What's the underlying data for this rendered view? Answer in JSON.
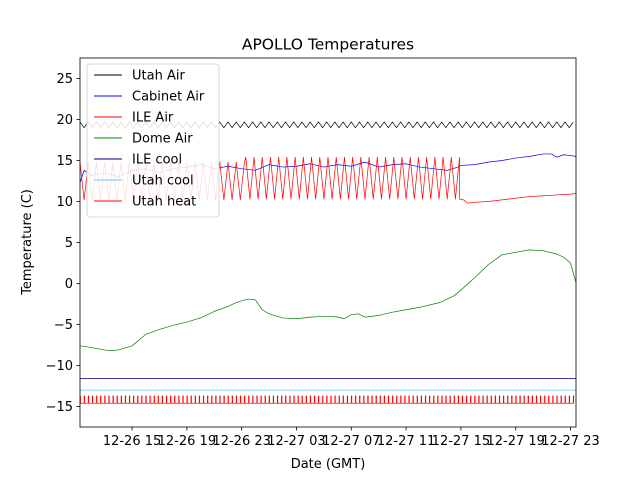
{
  "chart_data": {
    "type": "line",
    "title": "APOLLO Temperatures",
    "xlabel": "Date (GMT)",
    "ylabel": "Temperature (C)",
    "xlim": [
      11.2,
      47.4
    ],
    "ylim": [
      -17.5,
      27.5
    ],
    "xticks": [
      {
        "value": 15,
        "label": "12-26 15"
      },
      {
        "value": 19,
        "label": "12-26 19"
      },
      {
        "value": 23,
        "label": "12-26 23"
      },
      {
        "value": 27,
        "label": "12-27 03"
      },
      {
        "value": 31,
        "label": "12-27 07"
      },
      {
        "value": 35,
        "label": "12-27 11"
      },
      {
        "value": 39,
        "label": "12-27 15"
      },
      {
        "value": 43,
        "label": "12-27 19"
      },
      {
        "value": 47,
        "label": "12-27 23"
      }
    ],
    "yticks": [
      {
        "value": -15,
        "label": "−15"
      },
      {
        "value": -10,
        "label": "−10"
      },
      {
        "value": -5,
        "label": "−5"
      },
      {
        "value": 0,
        "label": "0"
      },
      {
        "value": 5,
        "label": "5"
      },
      {
        "value": 10,
        "label": "10"
      },
      {
        "value": 15,
        "label": "15"
      },
      {
        "value": 20,
        "label": "20"
      },
      {
        "value": 25,
        "label": "25"
      }
    ],
    "grid": false,
    "legend_position": "top-left",
    "series": [
      {
        "name": "Utah Air",
        "color": "#000000",
        "kind": "oscillation",
        "segments": [
          {
            "x0": 11.2,
            "x1": 47.4,
            "low": 19.0,
            "high": 19.7,
            "period": 0.6
          }
        ]
      },
      {
        "name": "Cabinet Air",
        "color": "#0000ff",
        "kind": "line",
        "x": [
          11.2,
          11.5,
          12.0,
          13.0,
          14.0,
          15.0,
          16.0,
          17.0,
          18.0,
          19.0,
          20.0,
          21.0,
          22.0,
          23.0,
          24.0,
          25.0,
          26.0,
          27.0,
          28.0,
          29.0,
          30.0,
          31.0,
          32.0,
          33.0,
          34.0,
          35.0,
          36.0,
          37.0,
          38.0,
          38.8,
          39.0,
          40.0,
          41.0,
          42.0,
          43.0,
          44.0,
          45.0,
          45.6,
          46.0,
          46.5,
          47.0,
          47.4
        ],
        "y": [
          12.3,
          13.8,
          13.2,
          13.5,
          13.0,
          13.8,
          14.0,
          13.5,
          14.0,
          14.2,
          14.5,
          14.0,
          14.3,
          14.0,
          13.8,
          14.5,
          14.2,
          14.3,
          14.6,
          14.2,
          14.5,
          14.3,
          14.8,
          14.2,
          14.5,
          14.6,
          14.2,
          14.0,
          13.8,
          14.2,
          14.4,
          14.5,
          14.8,
          15.0,
          15.3,
          15.5,
          15.8,
          15.8,
          15.4,
          15.7,
          15.6,
          15.5
        ]
      },
      {
        "name": "ILE Air",
        "color": "#ff0000",
        "kind": "oscillation",
        "segments": [
          {
            "x0": 11.2,
            "x1": 23.3,
            "low": 10.2,
            "high": 14.8,
            "period": 0.6
          },
          {
            "x0": 23.3,
            "x1": 38.9,
            "low": 10.3,
            "high": 15.4,
            "period": 0.6
          }
        ],
        "x": [
          38.9,
          39.2,
          39.5,
          40.0,
          41.0,
          42.0,
          43.0,
          44.0,
          45.0,
          46.0,
          47.0,
          47.4
        ],
        "y": [
          10.3,
          10.2,
          9.8,
          9.9,
          10.0,
          10.2,
          10.4,
          10.6,
          10.7,
          10.8,
          10.9,
          11.0
        ]
      },
      {
        "name": "Dome Air",
        "color": "#008000",
        "kind": "line",
        "x": [
          11.2,
          12.0,
          13.0,
          13.5,
          14.0,
          15.0,
          16.0,
          17.0,
          18.0,
          19.0,
          20.0,
          21.0,
          22.0,
          22.5,
          23.0,
          23.5,
          24.0,
          24.5,
          25.0,
          26.0,
          27.0,
          28.0,
          29.0,
          29.5,
          30.0,
          30.5,
          31.0,
          31.5,
          32.0,
          33.0,
          34.0,
          35.0,
          36.0,
          37.0,
          37.5,
          38.0,
          38.5,
          39.0,
          40.0,
          41.0,
          42.0,
          43.0,
          44.0,
          45.0,
          46.0,
          46.5,
          47.0,
          47.4
        ],
        "y": [
          -7.6,
          -7.8,
          -8.1,
          -8.2,
          -8.1,
          -7.6,
          -6.2,
          -5.6,
          -5.1,
          -4.7,
          -4.2,
          -3.4,
          -2.8,
          -2.4,
          -2.1,
          -1.9,
          -2.0,
          -3.2,
          -3.7,
          -4.2,
          -4.3,
          -4.1,
          -4.0,
          -4.0,
          -4.1,
          -4.3,
          -3.8,
          -3.7,
          -4.1,
          -3.9,
          -3.5,
          -3.2,
          -2.9,
          -2.5,
          -2.3,
          -1.9,
          -1.5,
          -0.8,
          0.7,
          2.3,
          3.5,
          3.8,
          4.1,
          4.0,
          3.6,
          3.2,
          2.5,
          0.1
        ]
      },
      {
        "name": "ILE cool",
        "color": "#00008b",
        "kind": "step",
        "x": [
          11.2,
          47.4
        ],
        "y": [
          -11.6,
          -11.6
        ]
      },
      {
        "name": "Utah cool",
        "color": "#64c8ff",
        "kind": "step",
        "x": [
          11.2,
          47.4
        ],
        "y": [
          -13.0,
          -13.0
        ]
      },
      {
        "name": "Utah heat",
        "color": "#ff0000",
        "kind": "pulses",
        "segments": [
          {
            "x0": 11.2,
            "x1": 47.4,
            "low": -14.6,
            "high": -13.7,
            "period": 0.3
          }
        ]
      }
    ]
  }
}
